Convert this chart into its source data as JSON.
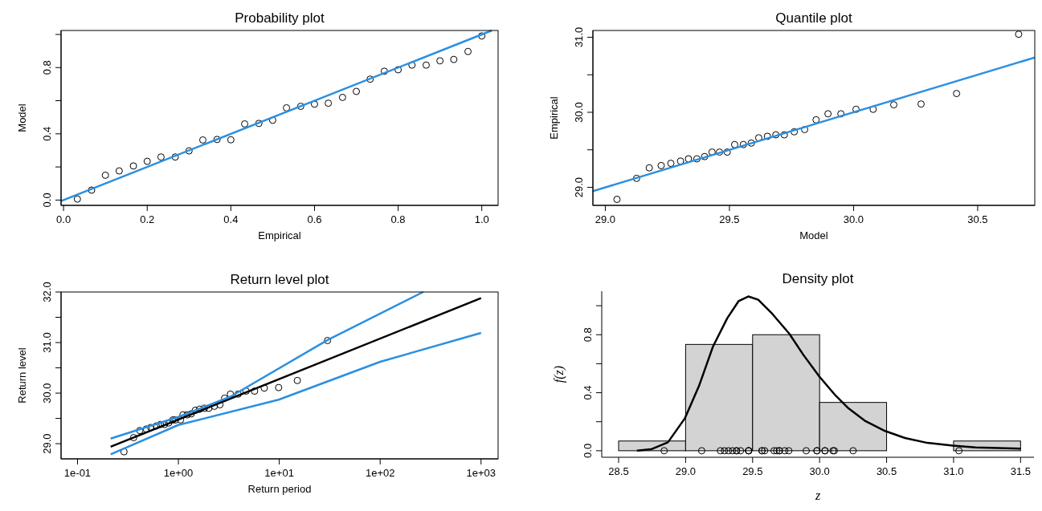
{
  "chart_data": [
    {
      "type": "scatter",
      "title": "Probability plot",
      "xlabel": "Empirical",
      "ylabel": "Model",
      "xlim": [
        -0.006,
        1.039
      ],
      "ylim": [
        -0.032,
        1.024
      ],
      "xticks": [
        {
          "value": 0,
          "label": "0.0"
        },
        0.2,
        0.4,
        0.6,
        0.8,
        {
          "value": 1,
          "label": "1.0"
        }
      ],
      "yticks": [
        {
          "value": 0,
          "label": "0.0"
        },
        {
          "value": 0.2,
          "label": null
        },
        {
          "value": 0.4,
          "label": "0.4"
        },
        {
          "value": 0.6,
          "label": null
        },
        {
          "value": 0.8,
          "label": "0.8"
        },
        {
          "value": 1,
          "label": null
        }
      ],
      "series": [
        {
          "type": "scatter",
          "marker": "circle",
          "color": "#000000",
          "x": [
            0.033,
            0.067,
            0.1,
            0.133,
            0.167,
            0.2,
            0.233,
            0.267,
            0.3,
            0.333,
            0.367,
            0.4,
            0.433,
            0.467,
            0.5,
            0.533,
            0.567,
            0.6,
            0.633,
            0.667,
            0.7,
            0.733,
            0.767,
            0.8,
            0.833,
            0.867,
            0.9,
            0.933,
            0.967,
            1.0
          ],
          "values": [
            0.006,
            0.06,
            0.15,
            0.176,
            0.206,
            0.234,
            0.26,
            0.26,
            0.297,
            0.363,
            0.366,
            0.364,
            0.46,
            0.463,
            0.482,
            0.557,
            0.566,
            0.579,
            0.585,
            0.62,
            0.656,
            0.73,
            0.778,
            0.787,
            0.815,
            0.815,
            0.841,
            0.849,
            0.897,
            0.991
          ]
        },
        {
          "type": "line",
          "color": "#2b8fe0",
          "x": [
            -0.006,
            1.024
          ],
          "values": [
            -0.006,
            1.024
          ]
        }
      ]
    },
    {
      "type": "scatter",
      "title": "Quantile plot",
      "xlabel": "Model",
      "ylabel": "Empirical",
      "xlim": [
        28.95,
        30.73
      ],
      "ylim": [
        28.76,
        31.09
      ],
      "xticks": [
        {
          "value": 29,
          "label": "29.0"
        },
        29.5,
        {
          "value": 30,
          "label": "30.0"
        },
        30.5
      ],
      "yticks": [
        {
          "value": 29,
          "label": "29.0"
        },
        {
          "value": 29.5,
          "label": null
        },
        {
          "value": 30,
          "label": "30.0"
        },
        {
          "value": 30.5,
          "label": null
        },
        {
          "value": 31,
          "label": "31.0"
        }
      ],
      "series": [
        {
          "type": "scatter",
          "marker": "circle",
          "color": "#000000",
          "x": [
            29.047,
            29.126,
            29.177,
            29.225,
            29.264,
            29.303,
            29.335,
            29.369,
            29.4,
            29.43,
            29.46,
            29.491,
            29.521,
            29.556,
            29.588,
            29.618,
            29.653,
            29.687,
            29.721,
            29.761,
            29.803,
            29.849,
            29.897,
            29.949,
            30.01,
            30.079,
            30.162,
            30.272,
            30.415,
            30.665
          ],
          "values": [
            28.84,
            29.12,
            29.26,
            29.29,
            29.32,
            29.35,
            29.38,
            29.38,
            29.41,
            29.47,
            29.47,
            29.47,
            29.57,
            29.57,
            29.59,
            29.66,
            29.68,
            29.7,
            29.7,
            29.74,
            29.77,
            29.9,
            29.98,
            29.98,
            30.04,
            30.04,
            30.1,
            30.11,
            30.25,
            31.04
          ]
        },
        {
          "type": "line",
          "color": "#2b8fe0",
          "x": [
            28.95,
            30.73
          ],
          "values": [
            28.95,
            30.73
          ]
        }
      ]
    },
    {
      "type": "scatter",
      "title": "Return level plot",
      "xlabel": "Return period",
      "ylabel": "Return level",
      "log": "x",
      "xlim": [
        0.0687,
        1476
      ],
      "ylim": [
        28.7,
        32.0
      ],
      "xticks": [
        {
          "value": 0.1,
          "label": "1e-01"
        },
        {
          "value": 1,
          "label": "1e+00"
        },
        {
          "value": 10,
          "label": "1e+01"
        },
        {
          "value": 100,
          "label": "1e+02"
        },
        {
          "value": 1000,
          "label": "1e+03"
        }
      ],
      "yticks": [
        {
          "value": 29,
          "label": "29.0"
        },
        {
          "value": 29.5,
          "label": null
        },
        {
          "value": 30,
          "label": "30.0"
        },
        {
          "value": 30.5,
          "label": null
        },
        {
          "value": 31,
          "label": "31.0"
        },
        {
          "value": 31.5,
          "label": null
        },
        {
          "value": 32,
          "label": "32.0"
        }
      ],
      "series": [
        {
          "type": "scatter",
          "marker": "circle",
          "color": "#000000",
          "x": [
            0.289,
            0.36,
            0.415,
            0.481,
            0.532,
            0.604,
            0.664,
            0.729,
            0.801,
            0.881,
            0.935,
            1.05,
            1.11,
            1.22,
            1.34,
            1.47,
            1.62,
            1.81,
            2.0,
            2.27,
            2.58,
            2.87,
            3.28,
            3.91,
            4.69,
            5.69,
            7.1,
            9.86,
            15.1,
            30.1
          ],
          "values": [
            28.84,
            29.12,
            29.26,
            29.29,
            29.32,
            29.35,
            29.38,
            29.38,
            29.41,
            29.47,
            29.47,
            29.47,
            29.57,
            29.57,
            29.59,
            29.66,
            29.68,
            29.7,
            29.7,
            29.74,
            29.77,
            29.9,
            29.98,
            29.98,
            30.04,
            30.04,
            30.1,
            30.11,
            30.25,
            31.04
          ]
        },
        {
          "type": "line",
          "color": "#000000",
          "x": [
            0.213,
            1000
          ],
          "values": [
            28.94,
            31.88
          ]
        },
        {
          "type": "line",
          "color": "#2b8fe0",
          "x": [
            0.213,
            1,
            3.28,
            30.1,
            267
          ],
          "values": [
            29.1,
            29.53,
            29.93,
            31.05,
            32.0
          ]
        },
        {
          "type": "line",
          "color": "#2b8fe0",
          "x": [
            0.213,
            1,
            9.86,
            100,
            1000
          ],
          "values": [
            28.79,
            29.37,
            29.87,
            30.62,
            31.19
          ]
        }
      ]
    },
    {
      "type": "histogram",
      "title": "Density plot",
      "xlabel": "z",
      "ylabel": "f(z)",
      "color": "#d3d3d3",
      "xlim": [
        28.374,
        31.6
      ],
      "ylim": [
        -0.045,
        1.1
      ],
      "bins": [
        28.5,
        29.0,
        29.5,
        30.0,
        30.5,
        31.0,
        31.5
      ],
      "values": [
        0.067,
        0.733,
        0.8,
        0.333,
        0,
        0.067
      ],
      "xticks": [
        28.5,
        {
          "value": 29,
          "label": "29.0"
        },
        29.5,
        {
          "value": 30,
          "label": "30.0"
        },
        30.5,
        {
          "value": 31,
          "label": "31.0"
        },
        31.5
      ],
      "yticks": [
        {
          "value": 0,
          "label": "0.0"
        },
        {
          "value": 0.2,
          "label": null
        },
        {
          "value": 0.4,
          "label": "0.4"
        },
        {
          "value": 0.6,
          "label": null
        },
        {
          "value": 0.8,
          "label": "0.8"
        },
        {
          "value": 1,
          "label": null
        }
      ],
      "series": [
        {
          "type": "line",
          "color": "#000000",
          "x": [
            28.637,
            28.742,
            28.868,
            28.995,
            29.1,
            29.205,
            29.311,
            29.395,
            29.468,
            29.542,
            29.647,
            29.774,
            29.879,
            29.995,
            30.111,
            30.216,
            30.342,
            30.489,
            30.637,
            30.805,
            30.995,
            31.163,
            31.332,
            31.5
          ],
          "values": [
            0.0,
            0.01,
            0.058,
            0.224,
            0.447,
            0.72,
            0.914,
            1.031,
            1.064,
            1.041,
            0.944,
            0.807,
            0.661,
            0.515,
            0.389,
            0.292,
            0.204,
            0.136,
            0.088,
            0.054,
            0.035,
            0.023,
            0.018,
            0.014
          ]
        },
        {
          "type": "scatter",
          "marker": "circle",
          "color": "#000000",
          "x": [
            28.84,
            29.12,
            29.26,
            29.29,
            29.32,
            29.35,
            29.38,
            29.38,
            29.41,
            29.47,
            29.47,
            29.47,
            29.57,
            29.57,
            29.59,
            29.66,
            29.68,
            29.7,
            29.7,
            29.74,
            29.77,
            29.9,
            29.98,
            29.98,
            30.04,
            30.04,
            30.1,
            30.11,
            30.25,
            31.04
          ],
          "values": [
            0,
            0,
            0,
            0,
            0,
            0,
            0,
            0,
            0,
            0,
            0,
            0,
            0,
            0,
            0,
            0,
            0,
            0,
            0,
            0,
            0,
            0,
            0,
            0,
            0,
            0,
            0,
            0,
            0,
            0
          ]
        }
      ]
    }
  ]
}
